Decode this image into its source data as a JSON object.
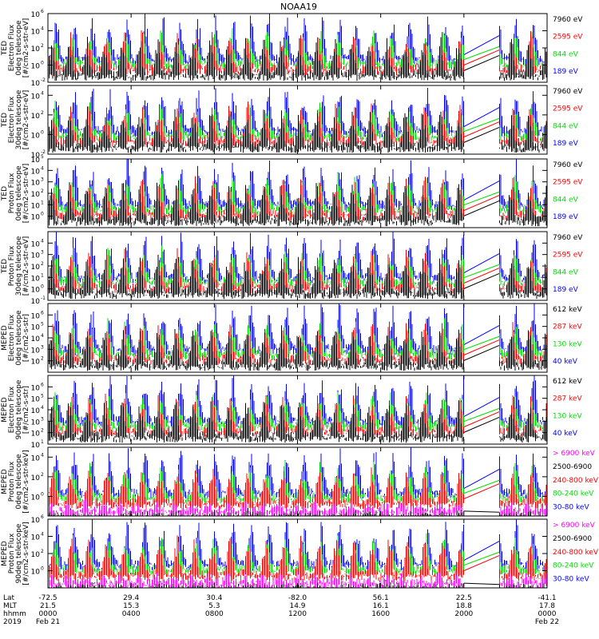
{
  "chart_data": {
    "type": "line",
    "title": "NOAA19",
    "colors": {
      "black": "#000000",
      "red": "#ff0000",
      "green": "#00e000",
      "blue": "#0000ff",
      "magenta": "#ff00ff"
    },
    "y_scale": "log",
    "panels": [
      {
        "ylabel": [
          "TED",
          "Electron Flux",
          "0deg telescope",
          "[#/cm2-s-str-eV]"
        ],
        "y_ticks": [
          "10",
          "10",
          "10",
          "10",
          "10"
        ],
        "y_exps": [
          "6",
          "4",
          "2",
          "0",
          "-2"
        ],
        "ylim_exp": [
          -2,
          6
        ],
        "legend": [
          {
            "label": "7960 eV",
            "color": "black"
          },
          {
            "label": "2595 eV",
            "color": "red"
          },
          {
            "label": "844 eV",
            "color": "green"
          },
          {
            "label": "189 eV",
            "color": "blue"
          }
        ]
      },
      {
        "ylabel": [
          "TED",
          "Electron Flux",
          "30deg telescope",
          "[#/cm2-s-str-eV]"
        ],
        "y_ticks": [
          "10",
          "10",
          "10",
          "10"
        ],
        "y_exps": [
          "4",
          "2",
          "0",
          "-2"
        ],
        "ylim_exp": [
          -2,
          5
        ],
        "legend": [
          {
            "label": "7960 eV",
            "color": "black"
          },
          {
            "label": "2595 eV",
            "color": "red"
          },
          {
            "label": "844 eV",
            "color": "green"
          },
          {
            "label": "189 eV",
            "color": "blue"
          }
        ]
      },
      {
        "ylabel": [
          "TED",
          "Proton Flux",
          "0deg telescope",
          "[#/cm2-s-str-eV]"
        ],
        "y_ticks": [
          "10",
          "10",
          "10",
          "10",
          "10",
          "10"
        ],
        "y_exps": [
          "5",
          "4",
          "3",
          "2",
          "1",
          "0"
        ],
        "ylim_exp": [
          -1,
          5
        ],
        "legend": [
          {
            "label": "7960 eV",
            "color": "black"
          },
          {
            "label": "2595 eV",
            "color": "red"
          },
          {
            "label": "844 eV",
            "color": "green"
          },
          {
            "label": "189 eV",
            "color": "blue"
          }
        ]
      },
      {
        "ylabel": [
          "TED",
          "Proton Flux",
          "30deg telescope",
          "[#/cm2-s-str-eV]"
        ],
        "y_ticks": [
          "10",
          "10",
          "10",
          "10",
          "10",
          "10"
        ],
        "y_exps": [
          "4",
          "3",
          "2",
          "1",
          "0",
          "-1"
        ],
        "ylim_exp": [
          -1,
          5
        ],
        "legend": [
          {
            "label": "7960 eV",
            "color": "black"
          },
          {
            "label": "2595 eV",
            "color": "red"
          },
          {
            "label": "844 eV",
            "color": "green"
          },
          {
            "label": "189 eV",
            "color": "blue"
          }
        ]
      },
      {
        "ylabel": [
          "MEPED",
          "Electron Flux",
          "0deg telescope",
          "[#/cm2-s-str]"
        ],
        "y_ticks": [
          "10",
          "10",
          "10",
          "10",
          "10"
        ],
        "y_exps": [
          "6",
          "5",
          "4",
          "3",
          "2"
        ],
        "ylim_exp": [
          1,
          7
        ],
        "legend": [
          {
            "label": "612 keV",
            "color": "black"
          },
          {
            "label": "287 keV",
            "color": "red"
          },
          {
            "label": "130 keV",
            "color": "green"
          },
          {
            "label": "40 keV",
            "color": "blue"
          }
        ]
      },
      {
        "ylabel": [
          "MEPED",
          "Electron Flux",
          "90deg telescope",
          "[#/cm2-s-str]"
        ],
        "y_ticks": [
          "10",
          "10",
          "10",
          "10",
          "10",
          "10"
        ],
        "y_exps": [
          "6",
          "5",
          "4",
          "3",
          "2",
          "1"
        ],
        "ylim_exp": [
          1,
          7
        ],
        "legend": [
          {
            "label": "612 keV",
            "color": "black"
          },
          {
            "label": "287 keV",
            "color": "red"
          },
          {
            "label": "130 keV",
            "color": "green"
          },
          {
            "label": "40 keV",
            "color": "blue"
          }
        ]
      },
      {
        "ylabel": [
          "MEPED",
          "Proton Flux",
          "0deg telescope",
          "[#/cm2-s-str-keV]"
        ],
        "y_ticks": [
          "10",
          "10",
          "10"
        ],
        "y_exps": [
          "4",
          "2",
          "0"
        ],
        "ylim_exp": [
          -2,
          5
        ],
        "legend": [
          {
            "label": "> 6900 keV",
            "color": "magenta"
          },
          {
            "label": "2500-6900",
            "color": "black"
          },
          {
            "label": "240-800 keV",
            "color": "red"
          },
          {
            "label": "80-240 keV",
            "color": "green"
          },
          {
            "label": "30-80 keV",
            "color": "blue"
          }
        ]
      },
      {
        "ylabel": [
          "MEPED",
          "Proton Flux",
          "90deg telescope",
          "[#/cm2-s-str-keV]"
        ],
        "y_ticks": [
          "10",
          "10",
          "10",
          "10"
        ],
        "y_exps": [
          "6",
          "4",
          "2",
          "0"
        ],
        "ylim_exp": [
          -2,
          6
        ],
        "legend": [
          {
            "label": "> 6900 keV",
            "color": "magenta"
          },
          {
            "label": "2500-6900",
            "color": "black"
          },
          {
            "label": "240-800 keV",
            "color": "red"
          },
          {
            "label": "80-240 keV",
            "color": "green"
          },
          {
            "label": "30-80 keV",
            "color": "blue"
          }
        ]
      }
    ],
    "x_axis": {
      "row_labels": [
        "Lat",
        "MLT",
        "hhmm",
        "2019"
      ],
      "ticks": [
        {
          "hour": 0,
          "lat": "-72.5",
          "mlt": "21.5",
          "hhmm": "0000",
          "date": "Feb 21"
        },
        {
          "hour": 4,
          "lat": "29.4",
          "mlt": "15.3",
          "hhmm": "0400",
          "date": ""
        },
        {
          "hour": 8,
          "lat": "30.4",
          "mlt": "5.3",
          "hhmm": "0800",
          "date": ""
        },
        {
          "hour": 12,
          "lat": "-82.0",
          "mlt": "14.9",
          "hhmm": "1200",
          "date": ""
        },
        {
          "hour": 16,
          "lat": "56.1",
          "mlt": "16.1",
          "hhmm": "1600",
          "date": ""
        },
        {
          "hour": 20,
          "lat": "22.5",
          "mlt": "18.8",
          "hhmm": "2000",
          "date": ""
        },
        {
          "hour": 24,
          "lat": "-41.1",
          "mlt": "17.8",
          "hhmm": "0000",
          "date": "Feb 22"
        }
      ],
      "xlim_hours": [
        0,
        24
      ],
      "data_gap_hours": [
        20.0,
        21.7
      ]
    }
  }
}
